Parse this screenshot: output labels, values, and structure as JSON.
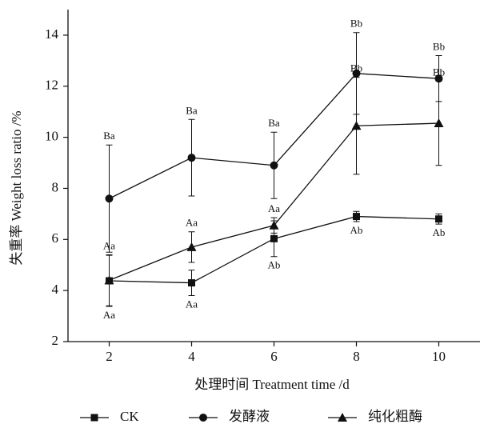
{
  "chart_data": {
    "type": "line",
    "x_label": "处理时间 Treatment time /d",
    "y_label": "失重率 Weight loss ratio /%",
    "x": [
      2,
      4,
      6,
      8,
      10
    ],
    "xlim": [
      1,
      11
    ],
    "xticks": [
      2,
      4,
      6,
      8,
      10
    ],
    "ylim": [
      2,
      15
    ],
    "yticks": [
      2,
      4,
      6,
      8,
      10,
      12,
      14
    ],
    "series": [
      {
        "name": "CK",
        "color": "#111111",
        "marker": "square",
        "values": [
          4.38,
          4.3,
          6.03,
          6.9,
          6.8
        ],
        "errors": [
          1.0,
          0.5,
          0.7,
          0.2,
          0.2
        ],
        "labels": [
          "Aa",
          "Aa",
          "Ab",
          "Ab",
          "Ab"
        ],
        "label_position": "below"
      },
      {
        "name": "发酵液",
        "color": "#111111",
        "marker": "circle",
        "values": [
          7.6,
          9.2,
          8.9,
          12.5,
          12.3
        ],
        "errors": [
          2.1,
          1.5,
          1.3,
          1.6,
          0.9
        ],
        "labels": [
          "Ba",
          "Ba",
          "Ba",
          "Bb",
          "Bb"
        ],
        "label_position": "above"
      },
      {
        "name": "纯化粗酶",
        "color": "#111111",
        "marker": "triangle",
        "values": [
          4.4,
          5.7,
          6.55,
          10.45,
          10.55
        ],
        "errors": [
          1.0,
          0.6,
          0.3,
          1.9,
          1.65
        ],
        "labels": [
          "Aa",
          "Aa",
          "Aa",
          "Bb",
          "Bb"
        ],
        "label_position": "above"
      }
    ]
  }
}
